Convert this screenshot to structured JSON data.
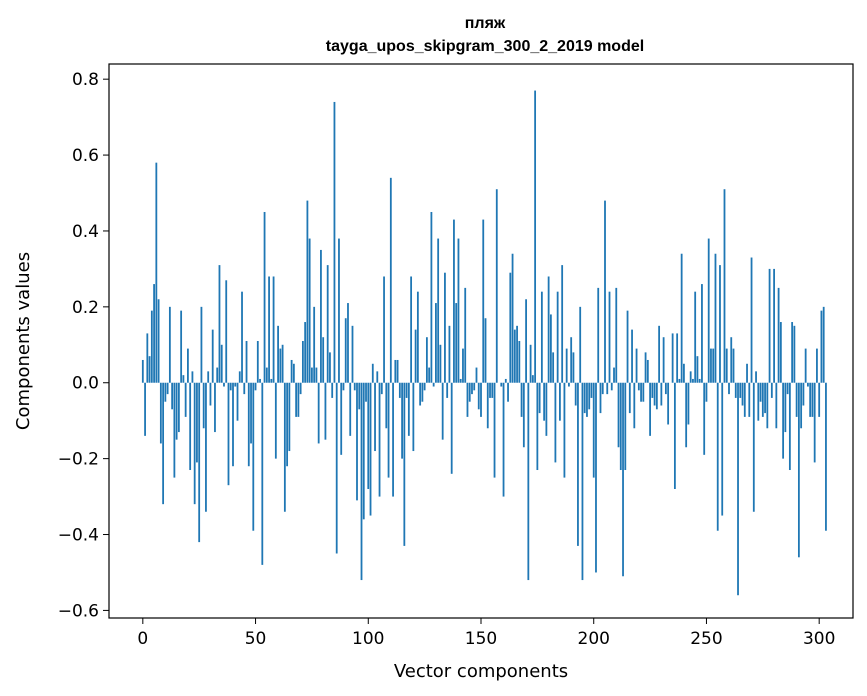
{
  "chart_data": {
    "type": "bar",
    "title": "пляж",
    "subtitle": "tayga_upos_skipgram_300_2_2019 model",
    "xlabel": "Vector components",
    "ylabel": "Components values",
    "xlim": [
      -15,
      315
    ],
    "ylim": [
      -0.62,
      0.84
    ],
    "xticks": [
      0,
      50,
      100,
      150,
      200,
      250,
      300
    ],
    "yticks": [
      -0.6,
      -0.4,
      -0.2,
      0.0,
      0.2,
      0.4,
      0.6,
      0.8
    ],
    "ytick_labels": [
      "−0.6",
      "−0.4",
      "−0.2",
      "0.0",
      "0.2",
      "0.4",
      "0.6",
      "0.8"
    ],
    "bar_color": "#1f77b4",
    "grid": false,
    "values": [
      0.06,
      -0.14,
      0.13,
      0.07,
      0.19,
      0.26,
      0.58,
      0.22,
      -0.16,
      -0.32,
      -0.05,
      -0.03,
      0.2,
      -0.07,
      -0.25,
      -0.15,
      -0.13,
      0.19,
      0.02,
      -0.09,
      0.09,
      -0.23,
      0.03,
      -0.32,
      -0.21,
      -0.42,
      0.2,
      -0.12,
      -0.34,
      0.03,
      -0.06,
      0.14,
      -0.13,
      0.04,
      0.31,
      0.1,
      -0.01,
      0.27,
      -0.27,
      -0.02,
      -0.22,
      -0.01,
      -0.1,
      0.03,
      0.24,
      -0.03,
      0.11,
      -0.22,
      -0.16,
      -0.39,
      -0.02,
      0.11,
      0.01,
      -0.48,
      0.45,
      0.04,
      0.28,
      0.01,
      0.28,
      -0.2,
      0.15,
      0.09,
      0.1,
      -0.34,
      -0.22,
      -0.18,
      0.06,
      0.05,
      -0.09,
      -0.09,
      -0.03,
      0.11,
      0.16,
      0.48,
      0.38,
      0.04,
      0.2,
      0.04,
      -0.16,
      0.35,
      0.12,
      -0.15,
      0.31,
      0.08,
      -0.04,
      0.74,
      -0.45,
      0.38,
      -0.19,
      -0.02,
      0.17,
      0.21,
      -0.14,
      0.15,
      -0.02,
      -0.31,
      -0.07,
      -0.52,
      -0.36,
      -0.05,
      -0.28,
      -0.35,
      0.05,
      -0.18,
      0.03,
      -0.3,
      -0.03,
      0.28,
      -0.12,
      -0.25,
      0.54,
      -0.3,
      0.06,
      0.06,
      -0.04,
      -0.2,
      -0.43,
      -0.04,
      -0.14,
      0.28,
      -0.18,
      0.14,
      0.24,
      -0.06,
      -0.05,
      -0.02,
      0.12,
      0.04,
      0.45,
      -0.01,
      0.21,
      0.38,
      0.1,
      -0.15,
      0.29,
      -0.04,
      0.15,
      -0.24,
      0.43,
      0.21,
      0.38,
      0.01,
      0.09,
      0.25,
      -0.09,
      -0.05,
      -0.03,
      -0.02,
      0.04,
      -0.07,
      -0.09,
      0.43,
      0.17,
      -0.12,
      -0.04,
      -0.04,
      -0.25,
      0.51,
      0.0,
      -0.01,
      -0.3,
      0.01,
      -0.05,
      0.29,
      0.34,
      0.14,
      0.15,
      0.11,
      -0.09,
      -0.17,
      0.22,
      -0.52,
      0.1,
      0.02,
      0.77,
      -0.23,
      -0.08,
      0.24,
      -0.1,
      -0.14,
      0.28,
      0.18,
      0.08,
      -0.21,
      0.24,
      -0.1,
      0.31,
      -0.25,
      0.09,
      -0.01,
      0.12,
      0.08,
      -0.06,
      -0.43,
      0.2,
      -0.52,
      -0.08,
      -0.09,
      -0.07,
      -0.04,
      -0.25,
      -0.5,
      0.25,
      -0.08,
      -0.03,
      0.48,
      -0.03,
      0.24,
      -0.02,
      0.04,
      0.25,
      -0.17,
      -0.23,
      -0.51,
      -0.23,
      0.19,
      -0.08,
      0.14,
      -0.12,
      0.09,
      -0.02,
      -0.05,
      -0.05,
      0.08,
      0.06,
      -0.14,
      -0.04,
      -0.06,
      -0.07,
      0.15,
      -0.06,
      0.12,
      -0.03,
      -0.11,
      0.0,
      0.13,
      -0.28,
      0.13,
      0.01,
      0.34,
      0.05,
      -0.17,
      -0.11,
      0.03,
      0.01,
      0.24,
      0.07,
      0.01,
      0.26,
      -0.19,
      -0.05,
      0.38,
      0.09,
      0.09,
      0.34,
      -0.39,
      0.31,
      -0.35,
      0.51,
      0.09,
      -0.03,
      0.12,
      0.09,
      -0.04,
      -0.56,
      -0.04,
      -0.06,
      -0.09,
      0.05,
      -0.09,
      0.33,
      -0.34,
      0.03,
      -0.1,
      -0.05,
      -0.09,
      -0.08,
      -0.12,
      0.3,
      -0.04,
      0.3,
      -0.12,
      0.25,
      0.16,
      -0.2,
      -0.13,
      -0.03,
      -0.23,
      0.16,
      0.15,
      -0.09,
      -0.46,
      -0.12,
      -0.06,
      0.09,
      -0.01,
      -0.09,
      -0.09,
      -0.21,
      0.09,
      -0.09,
      0.19,
      0.2,
      -0.39,
      0.0
    ]
  }
}
